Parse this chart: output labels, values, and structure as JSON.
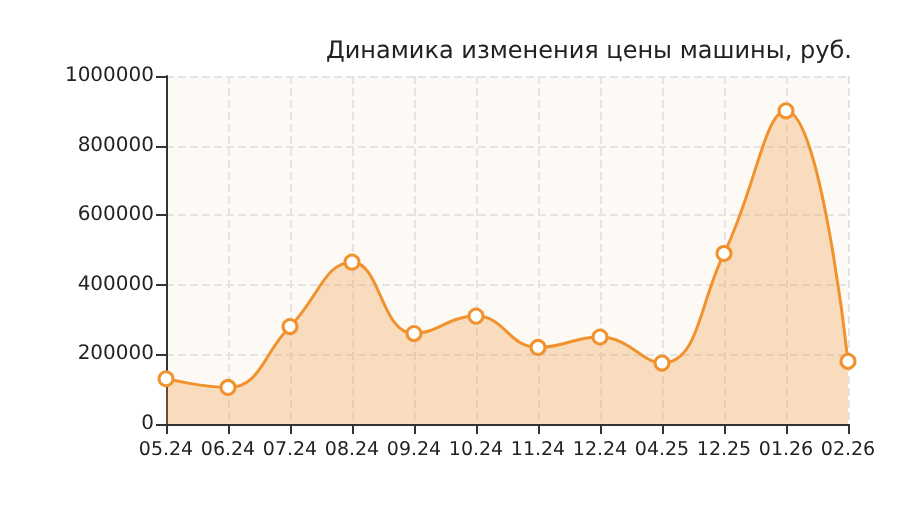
{
  "chart_data": {
    "type": "area",
    "title": "Динамика изменения цены машины, руб.",
    "categories": [
      "05.24",
      "06.24",
      "07.24",
      "08.24",
      "09.24",
      "10.24",
      "11.24",
      "12.24",
      "04.25",
      "12.25",
      "01.26",
      "02.26"
    ],
    "series": [
      {
        "color": "#f0922e",
        "values": [
          130000,
          105000,
          280000,
          465000,
          260000,
          310000,
          220000,
          250000,
          175000,
          490000,
          900000,
          180000
        ]
      }
    ],
    "ylim": [
      0,
      1000000
    ],
    "yticks": [
      0,
      200000,
      400000,
      600000,
      800000,
      1000000
    ],
    "grid": true,
    "marker": "circle",
    "line_style": "solid"
  }
}
